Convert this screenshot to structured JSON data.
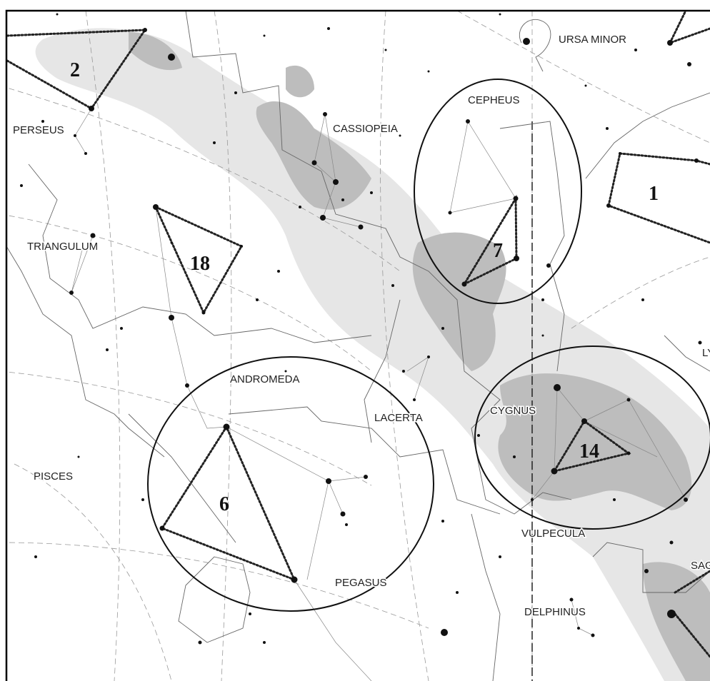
{
  "map": {
    "constellations": [
      "URSA MINOR",
      "PERSEUS",
      "CASSIOPEIA",
      "CEPHEUS",
      "TRIANGULUM",
      "ANDROMEDA",
      "LACERTA",
      "CYGNUS",
      "PISCES",
      "VULPECULA",
      "PEGASUS",
      "DELPHINUS",
      "SAG",
      "LY"
    ],
    "asterisms": [
      "2",
      "1",
      "18",
      "7",
      "6",
      "14"
    ]
  }
}
